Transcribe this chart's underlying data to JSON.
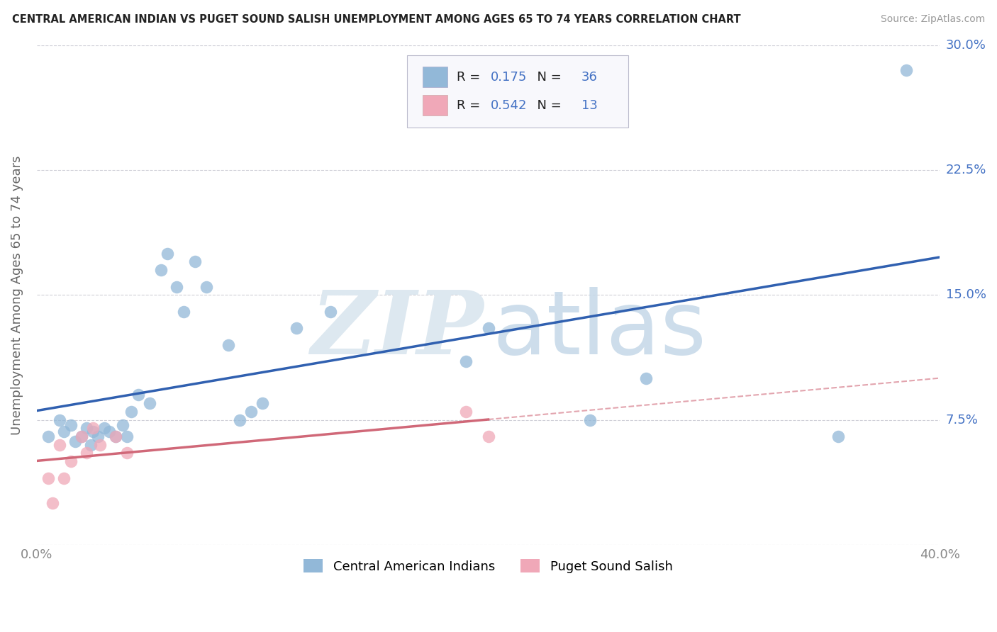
{
  "title": "CENTRAL AMERICAN INDIAN VS PUGET SOUND SALISH UNEMPLOYMENT AMONG AGES 65 TO 74 YEARS CORRELATION CHART",
  "source": "Source: ZipAtlas.com",
  "ylabel": "Unemployment Among Ages 65 to 74 years",
  "xlim": [
    0.0,
    0.4
  ],
  "ylim": [
    0.0,
    0.3
  ],
  "xticks": [
    0.0,
    0.1,
    0.2,
    0.3,
    0.4
  ],
  "xtick_labels": [
    "0.0%",
    "",
    "",
    "",
    "40.0%"
  ],
  "yticks": [
    0.0,
    0.075,
    0.15,
    0.225,
    0.3
  ],
  "ytick_labels": [
    "",
    "7.5%",
    "15.0%",
    "22.5%",
    "30.0%"
  ],
  "background_color": "#ffffff",
  "grid_color": "#d0d0d8",
  "blue_scatter_color": "#92b8d8",
  "pink_scatter_color": "#f0a8b8",
  "blue_line_color": "#3060b0",
  "pink_line_color": "#d06878",
  "R_blue": 0.175,
  "N_blue": 36,
  "R_pink": 0.542,
  "N_pink": 13,
  "legend_label_blue": "Central American Indians",
  "legend_label_pink": "Puget Sound Salish",
  "blue_x": [
    0.005,
    0.01,
    0.012,
    0.015,
    0.017,
    0.02,
    0.022,
    0.024,
    0.025,
    0.027,
    0.03,
    0.032,
    0.035,
    0.038,
    0.04,
    0.042,
    0.045,
    0.05,
    0.055,
    0.058,
    0.062,
    0.065,
    0.07,
    0.075,
    0.085,
    0.09,
    0.095,
    0.1,
    0.115,
    0.13,
    0.19,
    0.2,
    0.245,
    0.27,
    0.355,
    0.385
  ],
  "blue_y": [
    0.065,
    0.075,
    0.068,
    0.072,
    0.062,
    0.065,
    0.07,
    0.06,
    0.068,
    0.065,
    0.07,
    0.068,
    0.065,
    0.072,
    0.065,
    0.08,
    0.09,
    0.085,
    0.165,
    0.175,
    0.155,
    0.14,
    0.17,
    0.155,
    0.12,
    0.075,
    0.08,
    0.085,
    0.13,
    0.14,
    0.11,
    0.13,
    0.075,
    0.1,
    0.065,
    0.285
  ],
  "pink_x": [
    0.005,
    0.007,
    0.01,
    0.012,
    0.015,
    0.02,
    0.022,
    0.025,
    0.028,
    0.035,
    0.04,
    0.19,
    0.2
  ],
  "pink_y": [
    0.04,
    0.025,
    0.06,
    0.04,
    0.05,
    0.065,
    0.055,
    0.07,
    0.06,
    0.065,
    0.055,
    0.08,
    0.065
  ],
  "value_color": "#4472c4",
  "label_color": "#666666",
  "title_color": "#222222",
  "source_color": "#999999",
  "legend_box_color": "#f0f0f4",
  "legend_border_color": "#cccccc"
}
